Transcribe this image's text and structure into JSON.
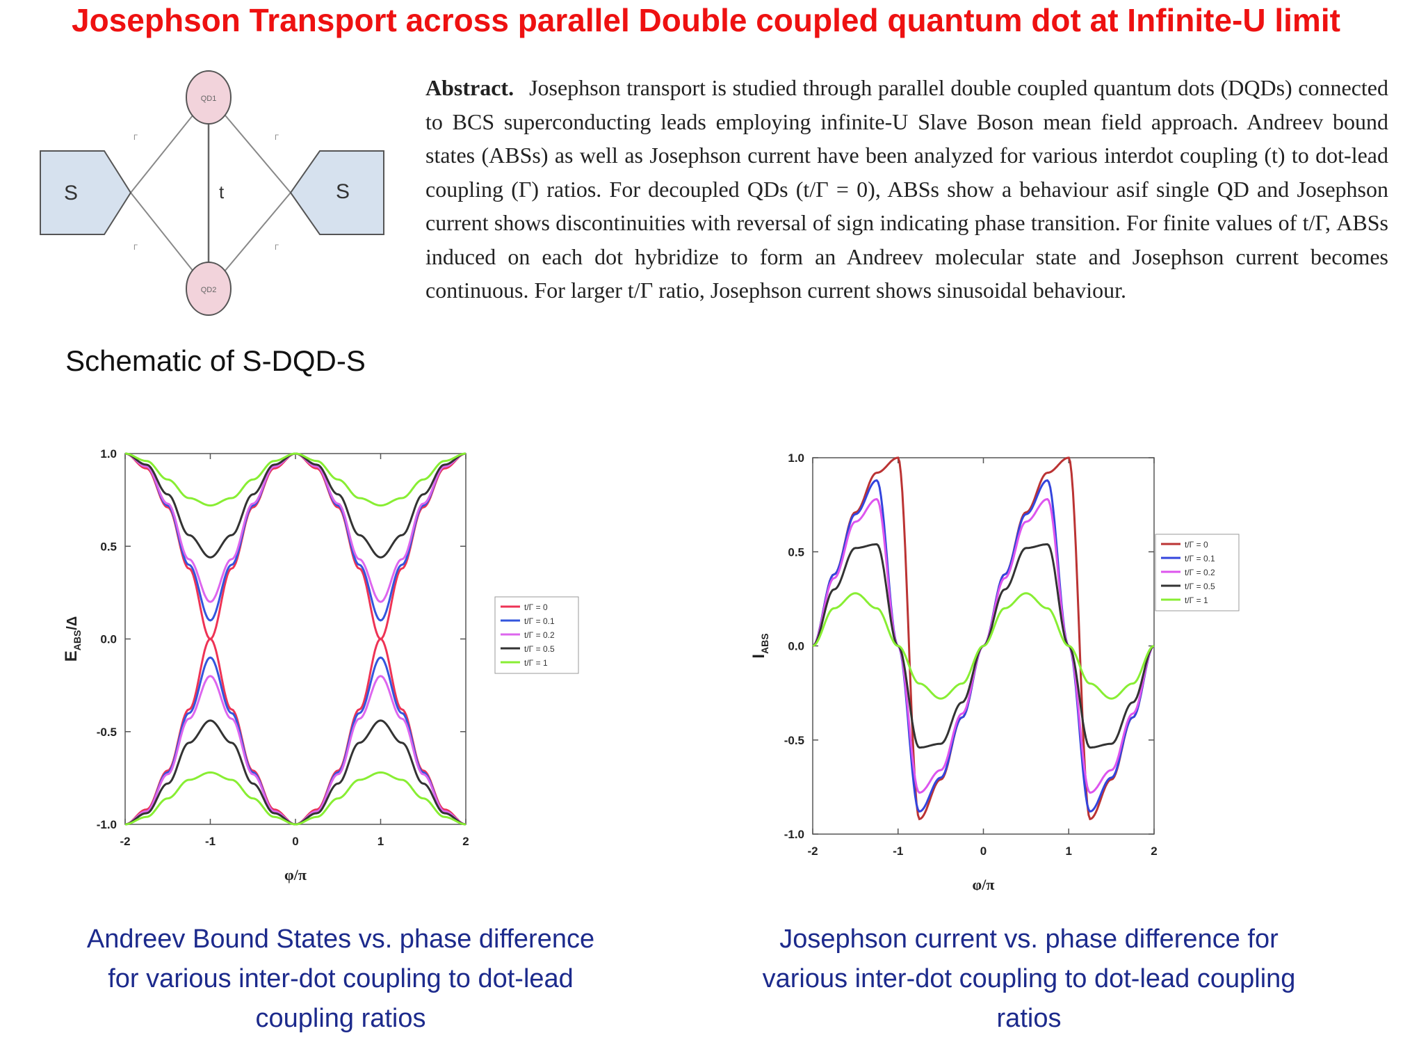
{
  "title": "Josephson Transport across parallel Double coupled quantum dot at Infinite-U limit",
  "schematic": {
    "caption": "Schematic of S-DQD-S",
    "left_lead": "S",
    "right_lead": "S",
    "dot1": "QD1",
    "dot2": "QD2",
    "interdot": "t",
    "gammas": [
      "Γ",
      "Γ",
      "Γ",
      "Γ"
    ],
    "colors": {
      "lead": "#d6e1ee",
      "dot": "#f2d3db"
    }
  },
  "abstract": {
    "label": "Abstract.",
    "text": "Josephson transport is studied through parallel double coupled quantum dots (DQDs) connected to BCS superconducting leads employing infinite-U Slave Boson mean field approach. Andreev bound states (ABSs) as well as Josephson current have been analyzed for various interdot coupling (t) to dot-lead coupling (Γ) ratios. For decoupled QDs (t/Γ = 0), ABSs show a behaviour asif single QD and Josephson current shows discontinuities with reversal of sign indicating phase transition. For finite values of t/Γ, ABSs induced on each dot hybridize to form an Andreev molecular state and Josephson current becomes continuous. For larger t/Γ ratio, Josephson current shows sinusoidal behaviour."
  },
  "captions": {
    "abs": "Andreev Bound States vs. phase difference for various inter-dot coupling to dot-lead coupling ratios",
    "jc": "Josephson current vs. phase difference for various inter-dot coupling to dot-lead coupling ratios"
  },
  "chart_data": [
    {
      "type": "line",
      "xlabel": "φ/π",
      "ylabel": "E_ABS/Δ",
      "xlim": [
        -2,
        2
      ],
      "ylim": [
        -1.0,
        1.0
      ],
      "xticks": [
        "-2",
        "-1",
        "0",
        "1",
        "2"
      ],
      "yticks": [
        "1.0",
        "0.5",
        "0.0",
        "-0.5",
        "-1.0"
      ],
      "legend_position": "right, middle",
      "grid": false,
      "x": [
        -2,
        -1.75,
        -1.5,
        -1.25,
        -1,
        -0.75,
        -0.5,
        -0.25,
        0,
        0.25,
        0.5,
        0.75,
        1,
        1.25,
        1.5,
        1.75,
        2
      ],
      "series": [
        {
          "name": "t/Γ = 0",
          "color": "#ee3355",
          "values": [
            1.0,
            0.92,
            0.71,
            0.38,
            0.0,
            0.38,
            0.71,
            0.92,
            1.0,
            0.92,
            0.71,
            0.38,
            0.0,
            0.38,
            0.71,
            0.92,
            1.0
          ],
          "mirror": true
        },
        {
          "name": "t/Γ = 0.1",
          "color": "#3355dd",
          "values": [
            1.0,
            0.93,
            0.72,
            0.4,
            0.1,
            0.4,
            0.72,
            0.93,
            1.0,
            0.93,
            0.72,
            0.4,
            0.1,
            0.4,
            0.72,
            0.93,
            1.0
          ],
          "mirror": true
        },
        {
          "name": "t/Γ = 0.2",
          "color": "#dd66ee",
          "values": [
            1.0,
            0.93,
            0.73,
            0.43,
            0.2,
            0.43,
            0.73,
            0.93,
            1.0,
            0.93,
            0.73,
            0.43,
            0.2,
            0.43,
            0.73,
            0.93,
            1.0
          ],
          "mirror": true
        },
        {
          "name": "t/Γ = 0.5",
          "color": "#333333",
          "values": [
            1.0,
            0.94,
            0.78,
            0.56,
            0.44,
            0.56,
            0.78,
            0.94,
            1.0,
            0.94,
            0.78,
            0.56,
            0.44,
            0.56,
            0.78,
            0.94,
            1.0
          ],
          "mirror": true
        },
        {
          "name": "t/Γ = 1",
          "color": "#88ee33",
          "values": [
            1.0,
            0.96,
            0.86,
            0.76,
            0.72,
            0.76,
            0.86,
            0.96,
            1.0,
            0.96,
            0.86,
            0.76,
            0.72,
            0.76,
            0.86,
            0.96,
            1.0
          ],
          "mirror": true
        }
      ]
    },
    {
      "type": "line",
      "xlabel": "φ/π",
      "ylabel": "I_ABS",
      "xlim": [
        -2,
        2
      ],
      "ylim": [
        -1.0,
        1.0
      ],
      "xticks": [
        "-2",
        "-1",
        "0",
        "1",
        "2"
      ],
      "yticks": [
        "1.0",
        "0.5",
        "0.0",
        "-0.5",
        "-1.0"
      ],
      "legend_position": "right, upper-middle",
      "grid": false,
      "x": [
        -2,
        -1.75,
        -1.5,
        -1.25,
        -1,
        -0.75,
        -0.5,
        -0.25,
        0,
        0.25,
        0.5,
        0.75,
        1,
        1.25,
        1.5,
        1.75,
        2
      ],
      "series": [
        {
          "name": "t/Γ = 0",
          "color": "#bb3333",
          "values": [
            0.0,
            0.38,
            0.71,
            0.92,
            1.0,
            -0.92,
            -0.71,
            -0.38,
            0.0,
            0.38,
            0.71,
            0.92,
            1.0,
            -0.92,
            -0.71,
            -0.38,
            0.0
          ]
        },
        {
          "name": "t/Γ = 0.1",
          "color": "#3344dd",
          "values": [
            0.0,
            0.38,
            0.7,
            0.88,
            0.0,
            -0.88,
            -0.7,
            -0.38,
            0.0,
            0.38,
            0.7,
            0.88,
            0.0,
            -0.88,
            -0.7,
            -0.38,
            0.0
          ]
        },
        {
          "name": "t/Γ = 0.2",
          "color": "#dd55ee",
          "values": [
            0.0,
            0.36,
            0.66,
            0.78,
            0.0,
            -0.78,
            -0.66,
            -0.36,
            0.0,
            0.36,
            0.66,
            0.78,
            0.0,
            -0.78,
            -0.66,
            -0.36,
            0.0
          ]
        },
        {
          "name": "t/Γ = 0.5",
          "color": "#333333",
          "values": [
            0.0,
            0.3,
            0.52,
            0.54,
            0.0,
            -0.54,
            -0.52,
            -0.3,
            0.0,
            0.3,
            0.52,
            0.54,
            0.0,
            -0.54,
            -0.52,
            -0.3,
            0.0
          ]
        },
        {
          "name": "t/Γ = 1",
          "color": "#88ee33",
          "values": [
            0.0,
            0.2,
            0.28,
            0.2,
            0.0,
            -0.2,
            -0.28,
            -0.2,
            0.0,
            0.2,
            0.28,
            0.2,
            0.0,
            -0.2,
            -0.28,
            -0.2,
            0.0
          ]
        }
      ]
    }
  ]
}
